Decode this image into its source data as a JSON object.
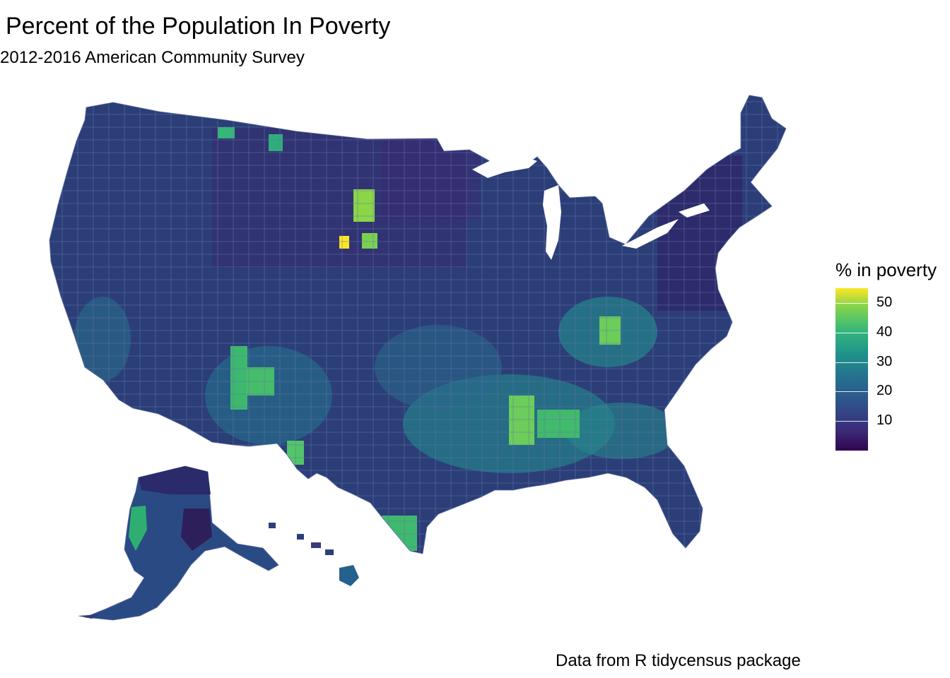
{
  "title": "Percent of the Population In Poverty",
  "subtitle": "2012-2016 American Community Survey",
  "caption": "Data from R tidycensus package",
  "legend": {
    "title": "% in poverty",
    "ticks": [
      "10",
      "20",
      "30",
      "40",
      "50"
    ],
    "tick_values": [
      10,
      20,
      30,
      40,
      50
    ],
    "range": [
      0,
      55
    ],
    "palette": "viridis",
    "colors": [
      "#440154",
      "#3b528b",
      "#21918c",
      "#5ec962",
      "#fde725"
    ]
  },
  "map": {
    "name": "US counties choropleth",
    "regions": [
      "contiguous-us",
      "alaska",
      "hawaii"
    ],
    "background": "#ffffff",
    "base_fill": "#2d3f7a",
    "border_color": "#5e6fa3"
  }
}
